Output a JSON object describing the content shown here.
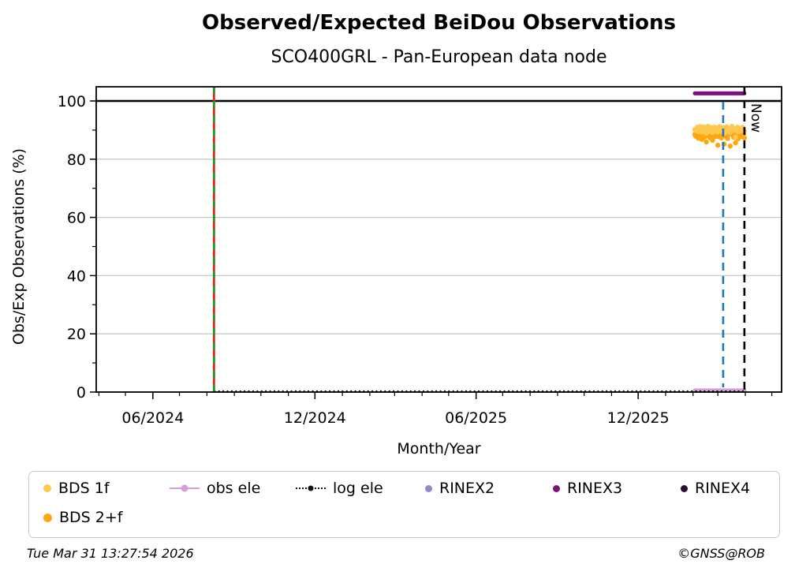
{
  "header": {
    "title": "Observed/Expected BeiDou Observations",
    "subtitle": "SCO400GRL - Pan-European data node"
  },
  "footer": {
    "timestamp": "Tue Mar 31 13:27:54 2026",
    "copyright": "©GNSS@ROB"
  },
  "legend": {
    "items": [
      {
        "label": "BDS 1f",
        "marker": "dot",
        "color": "#ffc84e"
      },
      {
        "label": "obs ele",
        "marker": "line-dot",
        "color": "#d39fd7"
      },
      {
        "label": "log ele",
        "marker": "dotted-line",
        "color": "#111111"
      },
      {
        "label": "RINEX2",
        "marker": "dot",
        "color": "#9488cb"
      },
      {
        "label": "RINEX3",
        "marker": "dot",
        "color": "#7d0f80"
      },
      {
        "label": "RINEX4",
        "marker": "dot",
        "color": "#2a0d35"
      },
      {
        "label": "BDS 2+f",
        "marker": "dot",
        "color": "#ffa70f"
      }
    ]
  },
  "chart_data": {
    "type": "scatter",
    "title": "Observed/Expected BeiDou Observations",
    "subtitle": "SCO400GRL - Pan-European data node",
    "xlabel": "Month/Year",
    "ylabel": "Obs/Exp Observations (%)",
    "ylim": [
      0,
      104.9
    ],
    "grid": "horizontal-major",
    "reference_hline": 100,
    "x_axis": {
      "min": "2024-03-29",
      "max": "2026-05-12",
      "major_ticks": [
        {
          "label": "06/2024",
          "date": "2024-06-01"
        },
        {
          "label": "12/2024",
          "date": "2024-12-01"
        },
        {
          "label": "06/2025",
          "date": "2025-06-01"
        },
        {
          "label": "12/2025",
          "date": "2025-12-01"
        }
      ],
      "minor_tick_interval": "1 month"
    },
    "y_axis": {
      "major_ticks": [
        0,
        20,
        40,
        60,
        80,
        100
      ],
      "minor_ticks": [
        10,
        30,
        50,
        70,
        90
      ]
    },
    "vlines": [
      {
        "date": "2024-08-09",
        "style": "event-line",
        "colors": [
          "#e3241c",
          "#1e9e1e"
        ],
        "label": ""
      },
      {
        "date": "2026-03-07",
        "style": "blue-dashed",
        "colors": [
          "#1f77b4"
        ],
        "label": ""
      },
      {
        "date": "2026-03-31",
        "style": "now-dashed",
        "colors": [
          "#000000"
        ],
        "label": "Now"
      }
    ],
    "series": [
      {
        "name": "obs ele",
        "type": "line",
        "color": "#d8a2dc",
        "width": 5.5,
        "points": [
          [
            "2026-02-03",
            0.5
          ],
          [
            "2026-03-31",
            0.5
          ]
        ]
      },
      {
        "name": "log ele",
        "type": "dotted-line",
        "color": "#111111",
        "width": 2.8,
        "points": [
          [
            "2024-08-09",
            0.2
          ],
          [
            "2026-03-31",
            0.2
          ]
        ]
      },
      {
        "name": "RINEX3",
        "type": "line",
        "color": "#7d0f80",
        "width": 5,
        "points": [
          [
            "2026-02-03",
            102.6
          ],
          [
            "2026-03-31",
            102.6
          ]
        ]
      },
      {
        "name": "BDS 2+f",
        "type": "scatter",
        "color": "#ffa70f",
        "start_date": "2026-02-03",
        "step_days": 1,
        "values": [
          88.5,
          87.9,
          88.8,
          89.4,
          87.2,
          88.1,
          89.0,
          88.4,
          86.8,
          88.9,
          89.2,
          87.6,
          88.3,
          85.9,
          88.7,
          89.1,
          88.0,
          87.4,
          88.6,
          89.3,
          86.5,
          88.2,
          88.9,
          87.8,
          88.4,
          89.0,
          84.8,
          87.7,
          88.8,
          89.2,
          87.3,
          88.5,
          89.1,
          85.2,
          88.0,
          88.6,
          89.3,
          87.1,
          88.4,
          88.9,
          84.5,
          88.7,
          89.0,
          88.2,
          87.5,
          88.8,
          85.6,
          88.3,
          89.1,
          87.0,
          88.6,
          88.9,
          87.8,
          88.1,
          89.2,
          88.5,
          87.3
        ]
      },
      {
        "name": "BDS 1f",
        "type": "scatter",
        "color": "#ffc84e",
        "start_date": "2026-02-03",
        "step_days": 1,
        "values": [
          90.2,
          89.8,
          90.5,
          91.0,
          89.5,
          90.8,
          91.2,
          90.0,
          89.3,
          90.6,
          91.1,
          89.9,
          90.4,
          88.9,
          90.7,
          91.3,
          90.1,
          89.6,
          90.9,
          90.3,
          89.1,
          90.5,
          91.0,
          89.8,
          90.2,
          90.8,
          89.4,
          90.0,
          91.2,
          90.6,
          89.7,
          90.3,
          90.9,
          88.8,
          90.1,
          90.7,
          91.1,
          89.5,
          90.4,
          90.0,
          89.2,
          90.8,
          91.3,
          90.5,
          89.9,
          90.2,
          87.5,
          90.6,
          91.0,
          89.4,
          90.3,
          90.7,
          89.8,
          90.1,
          90.9,
          90.4,
          89.6
        ]
      }
    ]
  }
}
